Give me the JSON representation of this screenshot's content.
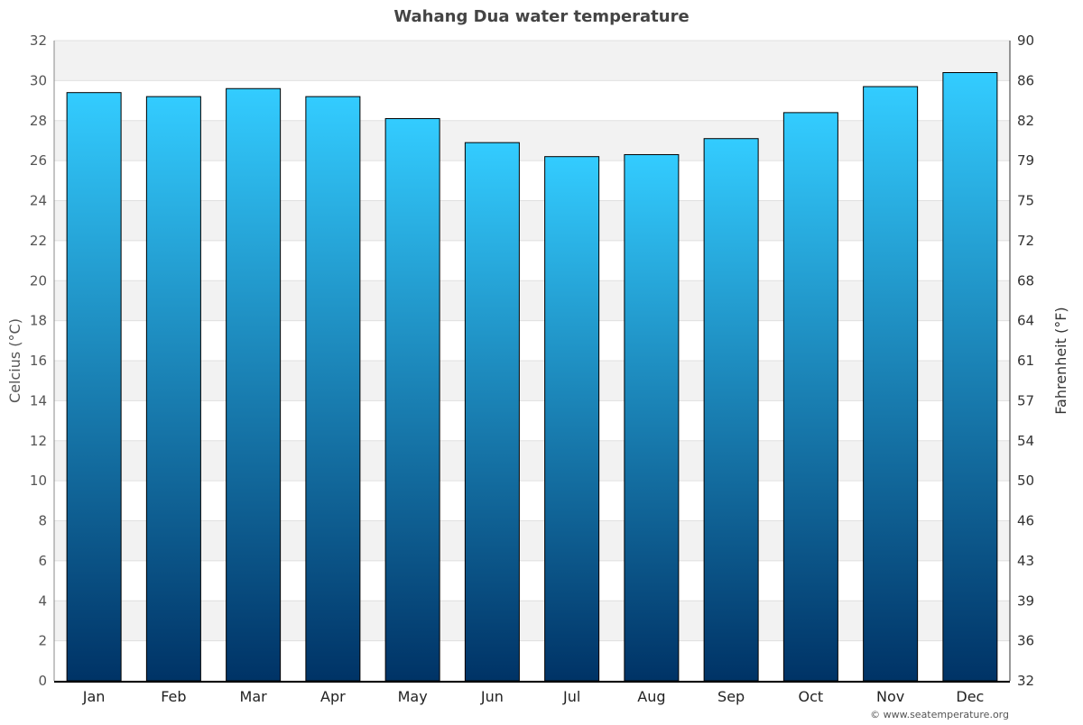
{
  "chart_data": {
    "type": "bar",
    "title": "Wahang Dua water temperature",
    "ylabel": "Celcius (°C)",
    "ylabel_right": "Fahrenheit (°F)",
    "categories": [
      "Jan",
      "Feb",
      "Mar",
      "Apr",
      "May",
      "Jun",
      "Jul",
      "Aug",
      "Sep",
      "Oct",
      "Nov",
      "Dec"
    ],
    "values": [
      29.4,
      29.2,
      29.6,
      29.2,
      28.1,
      26.9,
      26.2,
      26.3,
      27.1,
      28.4,
      29.7,
      30.4
    ],
    "ylim": [
      0,
      32
    ],
    "yticks": [
      0,
      2,
      4,
      6,
      8,
      10,
      12,
      14,
      16,
      18,
      20,
      22,
      24,
      26,
      28,
      30,
      32
    ],
    "yticks_right": [
      "32",
      "36",
      "39",
      "43",
      "46",
      "50",
      "54",
      "57",
      "61",
      "64",
      "68",
      "72",
      "75",
      "79",
      "82",
      "86",
      "90"
    ],
    "grid": true,
    "colors": {
      "bar_top": "#33ccff",
      "bar_bottom": "#003366",
      "band": "#f2f2f2"
    }
  },
  "credit": "© www.seatemperature.org"
}
